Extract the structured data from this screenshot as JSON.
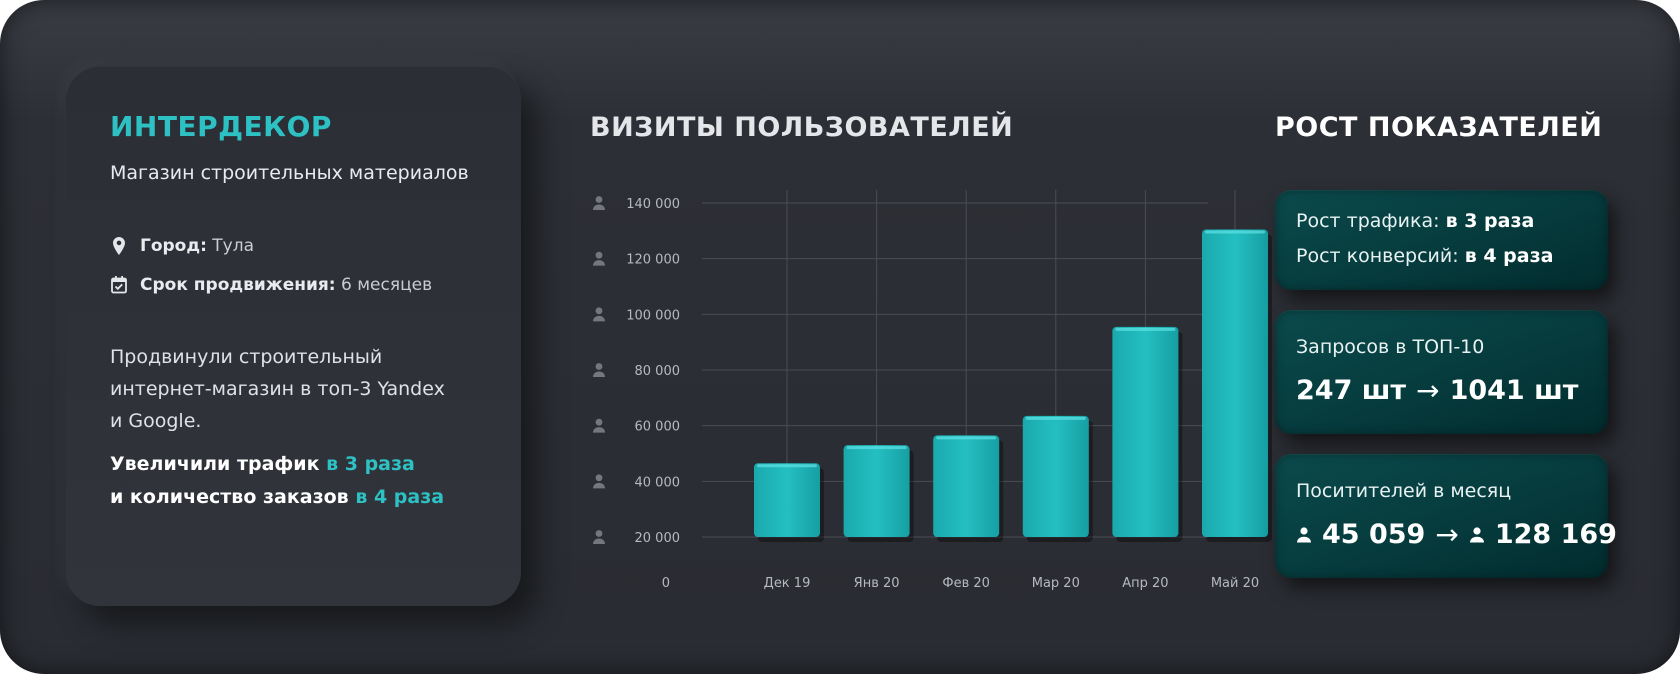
{
  "project": {
    "brand": "ИНТЕРДЕКОР",
    "subtitle": "Магазин строительных материалов",
    "city_label": "Город:",
    "city_value": "Тула",
    "term_label": "Срок продвижения:",
    "term_value": "6 месяцев",
    "description_lines": [
      "Продвинули строительный",
      "интернет-магазин в топ-3 Yandex",
      "и Google."
    ],
    "result_line1_text": "Увеличили трафик ",
    "result_line1_accent": "в 3 раза",
    "result_line2_text": "и количество заказов ",
    "result_line2_accent": "в 4 раза"
  },
  "colors": {
    "accent": "#2ec1c4",
    "bar": "#22b9bc",
    "card_teal": "#063b3d",
    "background": "#2c2f35"
  },
  "icons": {
    "city": "location-pin-icon",
    "term": "calendar-check-icon",
    "axis": "user-icon"
  },
  "chart_data": {
    "type": "bar",
    "title": "ВИЗИТЫ ПОЛЬЗОВАТЕЛЕЙ",
    "categories": [
      "Дек 19",
      "Янв 20",
      "Фев 20",
      "Мар 20",
      "Апр 20",
      "Май 20"
    ],
    "values": [
      46500,
      53000,
      56500,
      63500,
      95500,
      130500
    ],
    "ylim": [
      0,
      140000
    ],
    "yticks": [
      20000,
      40000,
      60000,
      80000,
      100000,
      120000,
      140000
    ],
    "ytick_labels": [
      "20 000",
      "40 000",
      "60 000",
      "80 000",
      "100 000",
      "120 000",
      "140 000"
    ],
    "zero_label": "0",
    "grid": true
  },
  "growth": {
    "title": "РОСТ ПОКАЗАТЕЛЕЙ",
    "traffic_label": "Рост трафика: ",
    "traffic_value": "в 3 раза",
    "conversion_label": "Рост конверсий: ",
    "conversion_value": "в 4 раза",
    "top10_label": "Запросов в ТОП-10",
    "top10_from": "247 шт",
    "top10_to": "1041 шт",
    "visitors_label": "Поситителей в месяц",
    "visitors_from": "45 059",
    "visitors_to": "128 169",
    "arrow": "→"
  }
}
